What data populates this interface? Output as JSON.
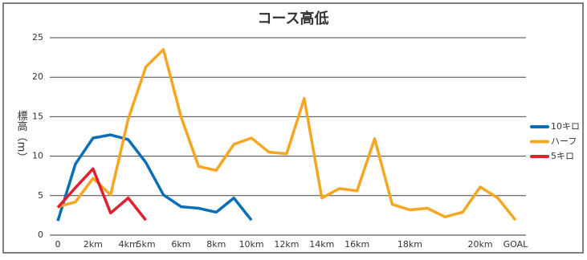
{
  "chart_data": {
    "type": "line",
    "title": "コース高低",
    "y_label": "標高（m）",
    "categories": [
      "0",
      null,
      "2km",
      null,
      "4km",
      "5km",
      null,
      "6km",
      null,
      "8km",
      null,
      "10km",
      null,
      "12km",
      null,
      "14km",
      null,
      "16km",
      null,
      null,
      "18km",
      null,
      null,
      null,
      "20km",
      null,
      "GOAL"
    ],
    "series": [
      {
        "name": "10キロ",
        "color": "#0a6fb5",
        "values": [
          1.8,
          9.0,
          12.3,
          12.7,
          12.1,
          9.2,
          5.1,
          3.6,
          3.4,
          2.9,
          4.7,
          1.9,
          null,
          null,
          null,
          null,
          null,
          null,
          null,
          null,
          null,
          null,
          null,
          null,
          null,
          null,
          null
        ]
      },
      {
        "name": "ハーフ",
        "color": "#f5a623",
        "values": [
          3.6,
          4.2,
          7.2,
          5.1,
          14.7,
          21.3,
          23.5,
          15.0,
          8.7,
          8.2,
          11.5,
          12.3,
          10.5,
          10.3,
          17.3,
          4.7,
          5.9,
          5.6,
          12.2,
          3.9,
          3.2,
          3.4,
          2.3,
          2.9,
          6.1,
          4.7,
          1.9
        ]
      },
      {
        "name": "5キロ",
        "color": "#e0202e",
        "values": [
          3.5,
          6.0,
          8.4,
          2.8,
          4.7,
          1.9,
          null,
          null,
          null,
          null,
          null,
          null,
          null,
          null,
          null,
          null,
          null,
          null,
          null,
          null,
          null,
          null,
          null,
          null,
          null,
          null,
          null
        ]
      }
    ],
    "ylim": [
      0,
      25
    ],
    "yticks": [
      0,
      5,
      10,
      15,
      20,
      25
    ],
    "grid": true,
    "legend": "right"
  }
}
